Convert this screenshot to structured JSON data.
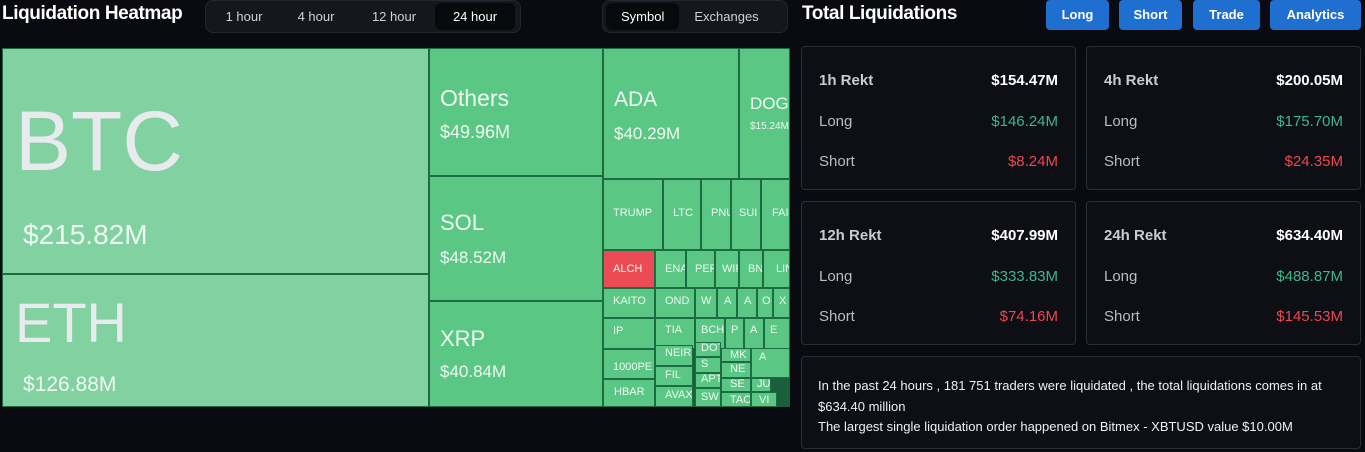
{
  "header": {
    "heatmap_title": "Liquidation Heatmap",
    "total_title": "Total Liquidations",
    "time_options": [
      "1 hour",
      "4 hour",
      "12 hour",
      "24 hour"
    ],
    "time_active": "24 hour",
    "view_options": [
      "Symbol",
      "Exchanges"
    ],
    "view_active": "Symbol",
    "nav_buttons": [
      "Long",
      "Short",
      "Trade",
      "Analytics"
    ]
  },
  "colors": {
    "positive": "#5bc785",
    "highlight": "#82d2a1",
    "negative": "#ea4b55",
    "accent": "#1f6fd1",
    "long_text": "#3fb68a",
    "short_text": "#ee4652"
  },
  "heatmap": {
    "tiles": [
      {
        "name": "BTC",
        "value": "$215.82M"
      },
      {
        "name": "ETH",
        "value": "$126.88M"
      },
      {
        "name": "Others",
        "value": "$49.96M"
      },
      {
        "name": "SOL",
        "value": "$48.52M"
      },
      {
        "name": "XRP",
        "value": "$40.84M"
      },
      {
        "name": "ADA",
        "value": "$40.29M"
      },
      {
        "name": "DOG",
        "value": "$15.24M"
      },
      {
        "name": "TRUMP"
      },
      {
        "name": "LTC"
      },
      {
        "name": "PNU"
      },
      {
        "name": "SUI"
      },
      {
        "name": "FAI"
      },
      {
        "name": "ALCH"
      },
      {
        "name": "ENA"
      },
      {
        "name": "PEP"
      },
      {
        "name": "WIF"
      },
      {
        "name": "BNB"
      },
      {
        "name": "LIN"
      },
      {
        "name": "KAITO"
      },
      {
        "name": "OND"
      },
      {
        "name": "W"
      },
      {
        "name": "A"
      },
      {
        "name": "A"
      },
      {
        "name": "O"
      },
      {
        "name": "X"
      },
      {
        "name": "IP"
      },
      {
        "name": "TIA"
      },
      {
        "name": "BCH"
      },
      {
        "name": "P"
      },
      {
        "name": "A"
      },
      {
        "name": "E"
      },
      {
        "name": "1000PE"
      },
      {
        "name": "NEIR"
      },
      {
        "name": "DOT"
      },
      {
        "name": "S"
      },
      {
        "name": "MK"
      },
      {
        "name": "NE"
      },
      {
        "name": "A"
      },
      {
        "name": "FIL"
      },
      {
        "name": "APT"
      },
      {
        "name": "SE"
      },
      {
        "name": "JU"
      },
      {
        "name": "HBAR"
      },
      {
        "name": "AVAX"
      },
      {
        "name": "SW"
      },
      {
        "name": "TAO"
      },
      {
        "name": "VI"
      }
    ]
  },
  "totals": [
    {
      "label": "1h Rekt",
      "total": "$154.47M",
      "long_label": "Long",
      "long": "$146.24M",
      "short_label": "Short",
      "short": "$8.24M"
    },
    {
      "label": "4h Rekt",
      "total": "$200.05M",
      "long_label": "Long",
      "long": "$175.70M",
      "short_label": "Short",
      "short": "$24.35M"
    },
    {
      "label": "12h Rekt",
      "total": "$407.99M",
      "long_label": "Long",
      "long": "$333.83M",
      "short_label": "Short",
      "short": "$74.16M"
    },
    {
      "label": "24h Rekt",
      "total": "$634.40M",
      "long_label": "Long",
      "long": "$488.87M",
      "short_label": "Short",
      "short": "$145.53M"
    }
  ],
  "summary": {
    "line1": "In the past 24 hours , 181 751 traders were liquidated , the total liquidations comes in at $634.40 million",
    "line2": "The largest single liquidation order happened on Bitmex - XBTUSD value $10.00M"
  }
}
